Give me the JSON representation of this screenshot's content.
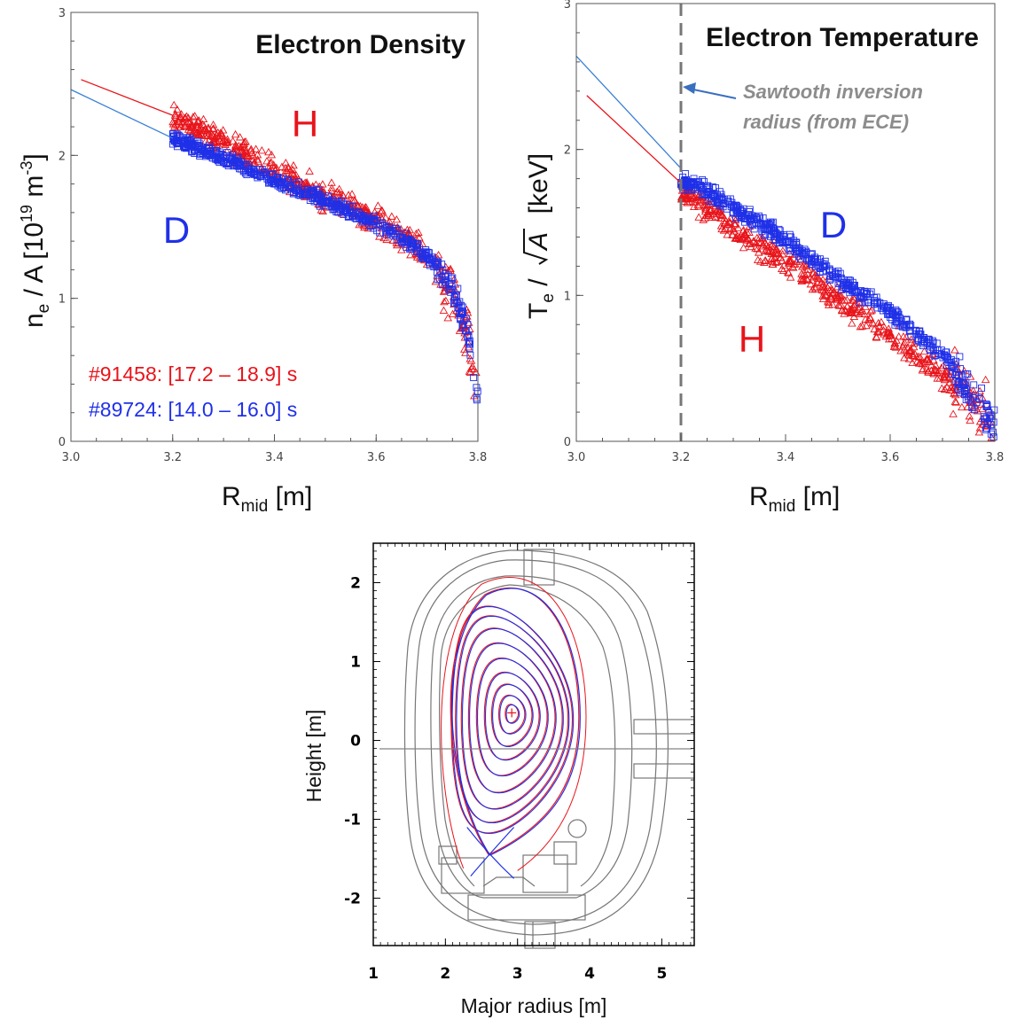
{
  "colors": {
    "h": "#e8141b",
    "d": "#1f30e8",
    "d_light": "#3a7fd8",
    "annotation": "#8c8c8c",
    "frame": "#555555",
    "machine": "#777777"
  },
  "chart_data": [
    {
      "type": "scatter",
      "title": "Electron Density",
      "xlabel": "R",
      "xlabel_sub": "mid",
      "xlabel_unit": " [m]",
      "ylabel_parts": {
        "n": "n",
        "n_sub": "e",
        "mid": " / A [10",
        "exp1": "19",
        "mid2": " m",
        "exp2": "-3",
        "end": "]"
      },
      "xlim": [
        3.0,
        3.8
      ],
      "ylim": [
        0,
        3
      ],
      "xticks": [
        "3.0",
        "3.2",
        "3.4",
        "3.6",
        "3.8"
      ],
      "yticks": [
        "0",
        "1",
        "2",
        "3"
      ],
      "labels": {
        "H": "H",
        "D": "D"
      },
      "legend": [
        "#91458: [17.2 – 18.9] s",
        "#89724: [14.0 – 16.0] s"
      ],
      "series": [
        {
          "marker": "triangle",
          "fit": [
            [
              3.02,
              2.53
            ],
            [
              3.2,
              2.28
            ]
          ],
          "trend": [
            [
              3.2,
              2.28
            ],
            [
              3.3,
              2.08
            ],
            [
              3.4,
              1.9
            ],
            [
              3.5,
              1.72
            ],
            [
              3.6,
              1.55
            ],
            [
              3.65,
              1.45
            ],
            [
              3.7,
              1.3
            ],
            [
              3.75,
              1.05
            ],
            [
              3.78,
              0.7
            ],
            [
              3.8,
              0.25
            ]
          ],
          "spread": 0.14
        },
        {
          "marker": "square",
          "fit": [
            [
              3.0,
              2.46
            ],
            [
              3.2,
              2.12
            ]
          ],
          "trend": [
            [
              3.2,
              2.12
            ],
            [
              3.3,
              1.98
            ],
            [
              3.4,
              1.82
            ],
            [
              3.5,
              1.68
            ],
            [
              3.6,
              1.52
            ],
            [
              3.65,
              1.42
            ],
            [
              3.7,
              1.3
            ],
            [
              3.75,
              1.08
            ],
            [
              3.78,
              0.75
            ],
            [
              3.8,
              0.3
            ]
          ],
          "spread": 0.07
        }
      ]
    },
    {
      "type": "scatter",
      "title": "Electron Temperature",
      "xlabel": "R",
      "xlabel_sub": "mid",
      "xlabel_unit": " [m]",
      "ylabel_parts": {
        "t": "T",
        "t_sub": "e",
        "mid": " / ",
        "sqrt": "A",
        "end": "  [keV]"
      },
      "xlim": [
        3.0,
        3.8
      ],
      "ylim": [
        0,
        3
      ],
      "xticks": [
        "3.0",
        "3.2",
        "3.4",
        "3.6",
        "3.8"
      ],
      "yticks": [
        "0",
        "1",
        "2",
        "3"
      ],
      "labels": {
        "H": "H",
        "D": "D"
      },
      "annotation": [
        "Sawtooth inversion",
        "radius (from ECE)"
      ],
      "inversion_radius": 3.2,
      "series": [
        {
          "marker": "triangle",
          "fit": [
            [
              3.02,
              2.37
            ],
            [
              3.2,
              1.77
            ]
          ],
          "trend": [
            [
              3.2,
              1.72
            ],
            [
              3.25,
              1.6
            ],
            [
              3.3,
              1.45
            ],
            [
              3.4,
              1.22
            ],
            [
              3.5,
              0.98
            ],
            [
              3.6,
              0.72
            ],
            [
              3.7,
              0.48
            ],
            [
              3.75,
              0.3
            ],
            [
              3.8,
              0.1
            ]
          ],
          "spread": 0.14
        },
        {
          "marker": "square",
          "fit": [
            [
              3.0,
              2.64
            ],
            [
              3.2,
              1.87
            ]
          ],
          "trend": [
            [
              3.2,
              1.78
            ],
            [
              3.25,
              1.72
            ],
            [
              3.3,
              1.6
            ],
            [
              3.4,
              1.38
            ],
            [
              3.5,
              1.12
            ],
            [
              3.6,
              0.88
            ],
            [
              3.7,
              0.6
            ],
            [
              3.75,
              0.35
            ],
            [
              3.8,
              0.1
            ]
          ],
          "spread": 0.08
        }
      ]
    },
    {
      "type": "diagram",
      "xlabel": "Major radius [m]",
      "ylabel": "Height [m]",
      "xlim": [
        1,
        5.45
      ],
      "ylim": [
        -2.6,
        2.5
      ],
      "xticks": [
        "1",
        "2",
        "3",
        "4",
        "5"
      ],
      "yticks": [
        "-2",
        "-1",
        "0",
        "1",
        "2"
      ],
      "axis": {
        "R": 2.92,
        "Z": 0.35
      }
    }
  ]
}
